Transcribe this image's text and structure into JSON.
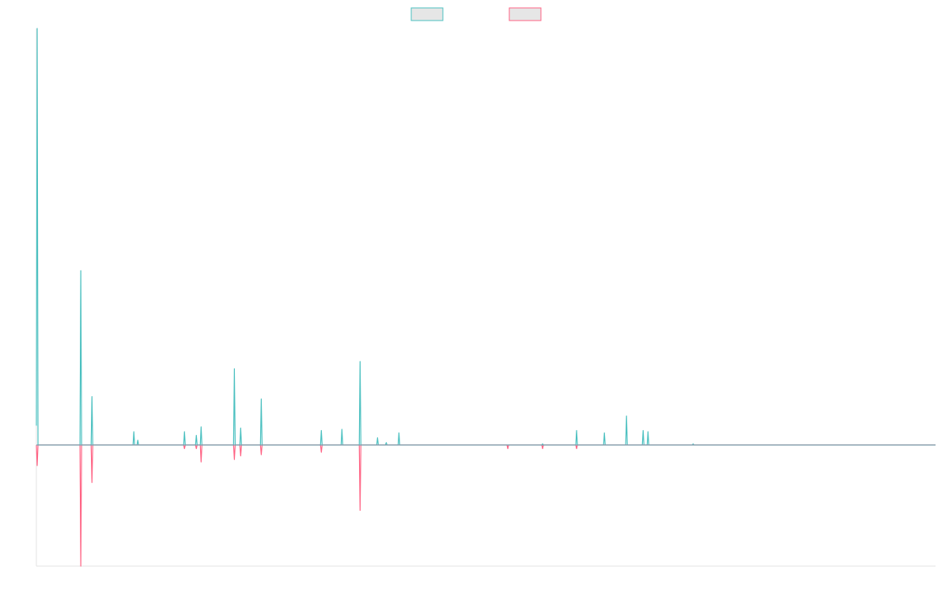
{
  "chart_data": {
    "type": "line",
    "title": "",
    "xlabel": "",
    "ylabel": "",
    "grid": false,
    "legend": {
      "position": "top-center",
      "entries": [
        {
          "name": "",
          "color": "#4bc0c0",
          "fill": "#e6e6e6"
        },
        {
          "name": "",
          "color": "#ff6384",
          "fill": "#e6e6e6"
        }
      ]
    },
    "xlim": [
      0,
      1
    ],
    "ylim": [
      -1,
      3.44
    ],
    "series": [
      {
        "name": "",
        "color": "#4bc0c0",
        "points": [
          [
            0.0,
            0.16
          ],
          [
            0.0009,
            3.44
          ],
          [
            0.0018,
            0.0
          ],
          [
            0.0485,
            0.0
          ],
          [
            0.0494,
            1.44
          ],
          [
            0.0503,
            0.0
          ],
          [
            0.0609,
            0.0
          ],
          [
            0.0618,
            0.4
          ],
          [
            0.0627,
            0.0
          ],
          [
            0.1075,
            0.0
          ],
          [
            0.1084,
            0.11
          ],
          [
            0.1093,
            0.0
          ],
          [
            0.1119,
            0.0
          ],
          [
            0.1128,
            0.04
          ],
          [
            0.1137,
            0.0
          ],
          [
            0.1638,
            0.0
          ],
          [
            0.1647,
            0.11
          ],
          [
            0.1656,
            0.0
          ],
          [
            0.177,
            0.0
          ],
          [
            0.1779,
            0.08
          ],
          [
            0.1788,
            0.0
          ],
          [
            0.1823,
            0.0
          ],
          [
            0.1832,
            0.15
          ],
          [
            0.1841,
            0.0
          ],
          [
            0.2193,
            0.0
          ],
          [
            0.2202,
            0.63
          ],
          [
            0.2211,
            0.0
          ],
          [
            0.2263,
            0.0
          ],
          [
            0.2272,
            0.14
          ],
          [
            0.2281,
            0.0
          ],
          [
            0.2492,
            0.0
          ],
          [
            0.2501,
            0.38
          ],
          [
            0.251,
            0.0
          ],
          [
            0.316,
            0.0
          ],
          [
            0.3169,
            0.12
          ],
          [
            0.3178,
            0.0
          ],
          [
            0.3389,
            0.0
          ],
          [
            0.3398,
            0.13
          ],
          [
            0.3407,
            0.0
          ],
          [
            0.3591,
            0.0
          ],
          [
            0.36,
            0.69
          ],
          [
            0.3609,
            0.0
          ],
          [
            0.3785,
            0.0
          ],
          [
            0.3794,
            0.06
          ],
          [
            0.3803,
            0.0
          ],
          [
            0.3882,
            0.0
          ],
          [
            0.3891,
            0.02
          ],
          [
            0.39,
            0.0
          ],
          [
            0.4023,
            0.0
          ],
          [
            0.4032,
            0.1
          ],
          [
            0.4041,
            0.0
          ],
          [
            0.5621,
            0.0
          ],
          [
            0.563,
            0.01
          ],
          [
            0.5639,
            0.0
          ],
          [
            0.5999,
            0.0
          ],
          [
            0.6008,
            0.12
          ],
          [
            0.6017,
            0.0
          ],
          [
            0.6308,
            0.0
          ],
          [
            0.6317,
            0.1
          ],
          [
            0.6326,
            0.0
          ],
          [
            0.6554,
            0.0
          ],
          [
            0.6563,
            0.24
          ],
          [
            0.6572,
            0.0
          ],
          [
            0.6739,
            0.0
          ],
          [
            0.6748,
            0.12
          ],
          [
            0.6757,
            0.0
          ],
          [
            0.6793,
            0.0
          ],
          [
            0.6802,
            0.11
          ],
          [
            0.6811,
            0.0
          ],
          [
            0.7295,
            0.0
          ],
          [
            0.7304,
            0.01
          ],
          [
            0.7313,
            0.0
          ],
          [
            1.0,
            0.0
          ]
        ]
      },
      {
        "name": "",
        "color": "#ff6384",
        "points": [
          [
            0.0,
            0.0
          ],
          [
            0.0009,
            -0.17
          ],
          [
            0.0018,
            0.0
          ],
          [
            0.0485,
            0.0
          ],
          [
            0.0494,
            -1.0
          ],
          [
            0.0503,
            0.0
          ],
          [
            0.0609,
            0.0
          ],
          [
            0.0618,
            -0.31
          ],
          [
            0.0627,
            0.0
          ],
          [
            0.1638,
            0.0
          ],
          [
            0.1647,
            -0.03
          ],
          [
            0.1656,
            0.0
          ],
          [
            0.177,
            0.0
          ],
          [
            0.1779,
            -0.03
          ],
          [
            0.1788,
            0.0
          ],
          [
            0.1823,
            0.0
          ],
          [
            0.1832,
            -0.14
          ],
          [
            0.1841,
            0.0
          ],
          [
            0.2193,
            0.0
          ],
          [
            0.2202,
            -0.12
          ],
          [
            0.2211,
            0.0
          ],
          [
            0.2263,
            0.0
          ],
          [
            0.2272,
            -0.09
          ],
          [
            0.2281,
            0.0
          ],
          [
            0.2492,
            0.0
          ],
          [
            0.2501,
            -0.08
          ],
          [
            0.251,
            0.0
          ],
          [
            0.316,
            0.0
          ],
          [
            0.3169,
            -0.06
          ],
          [
            0.3178,
            0.0
          ],
          [
            0.3591,
            0.0
          ],
          [
            0.36,
            -0.54
          ],
          [
            0.3609,
            0.0
          ],
          [
            0.5234,
            0.0
          ],
          [
            0.5243,
            -0.03
          ],
          [
            0.5252,
            0.0
          ],
          [
            0.5621,
            0.0
          ],
          [
            0.563,
            -0.03
          ],
          [
            0.5639,
            0.0
          ],
          [
            0.5999,
            0.0
          ],
          [
            0.6008,
            -0.03
          ],
          [
            0.6017,
            0.0
          ],
          [
            1.0,
            0.0
          ]
        ]
      }
    ]
  }
}
